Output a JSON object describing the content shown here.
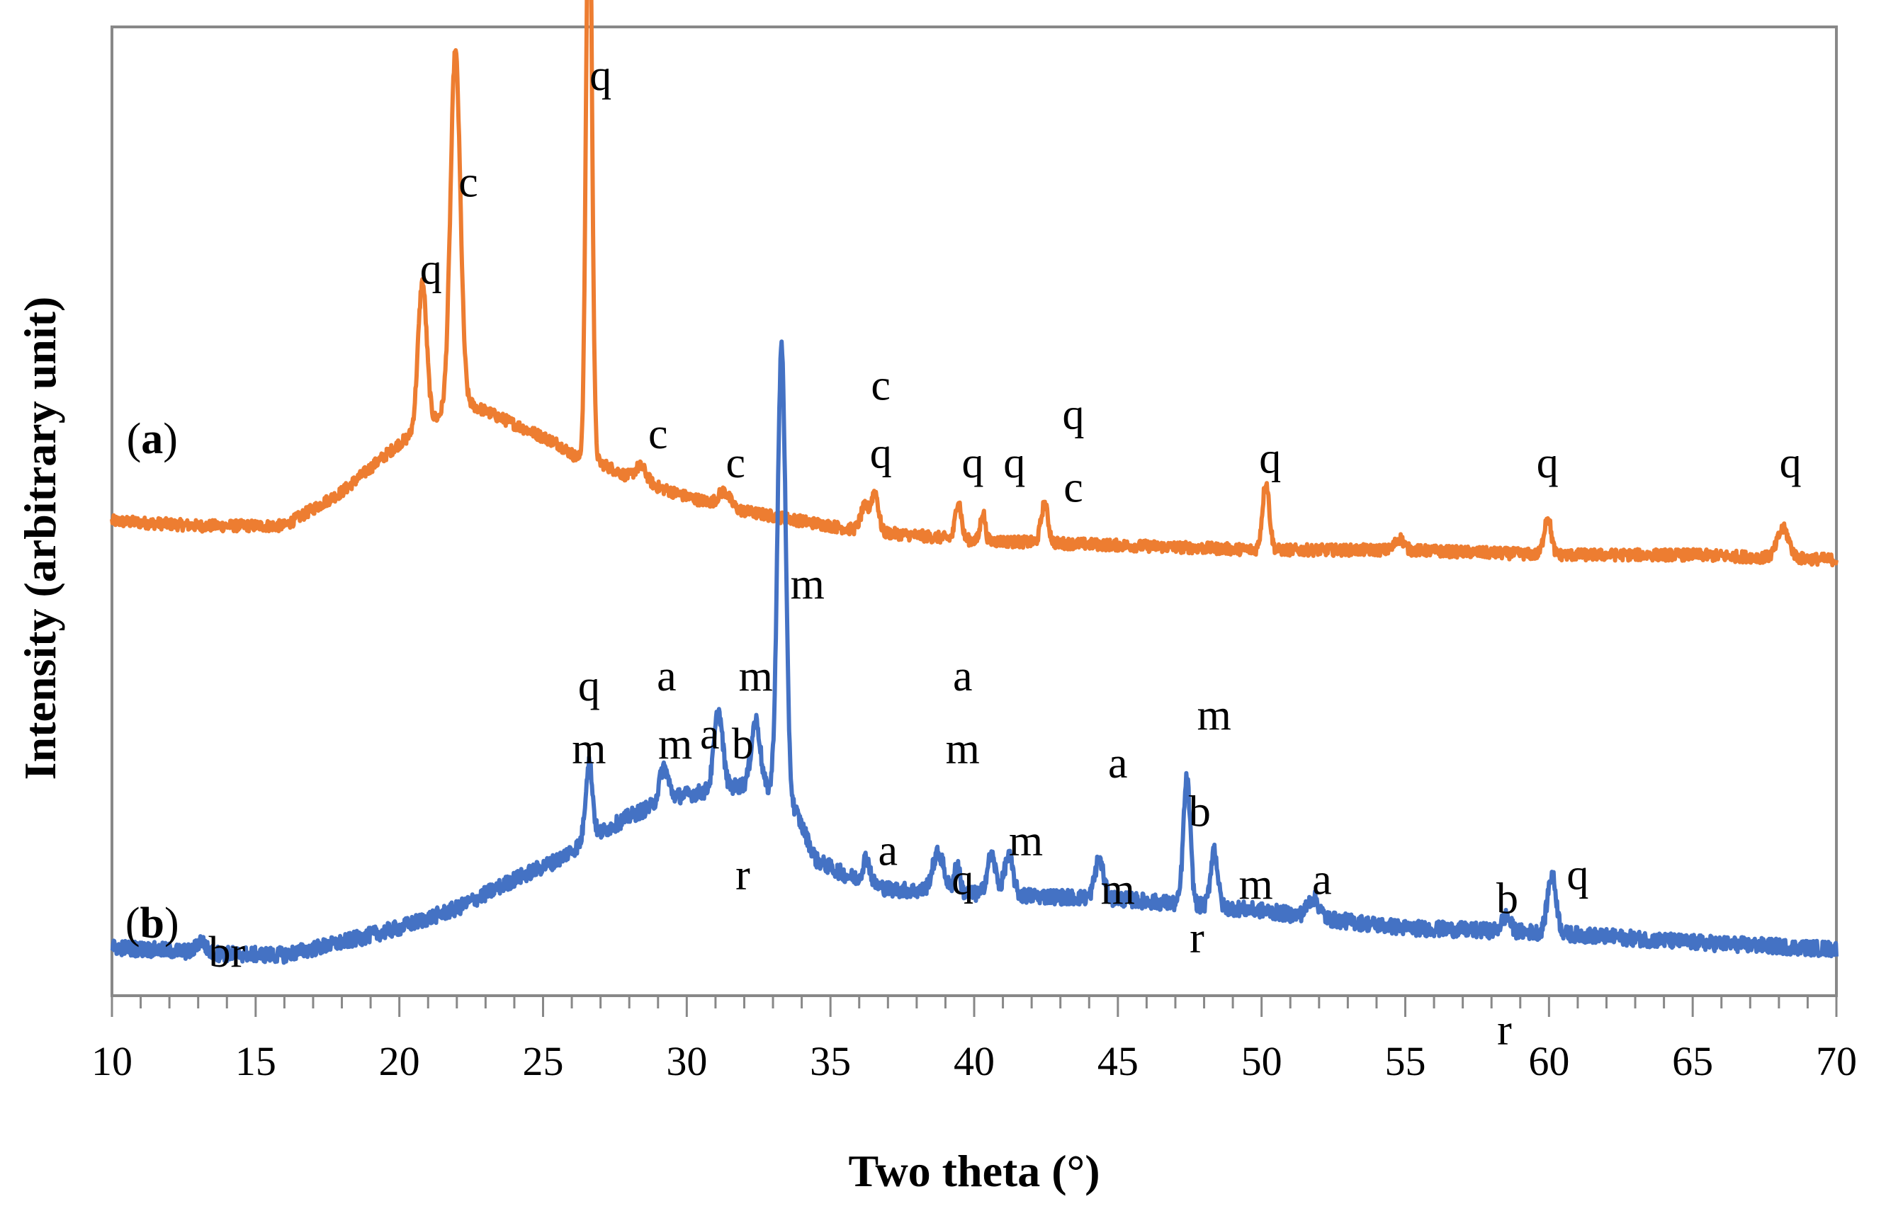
{
  "chart_data": {
    "type": "line",
    "title": "",
    "xlabel": "Two theta (°)",
    "ylabel": "Intensity (arbitrary unit)",
    "xlim": [
      10,
      70
    ],
    "ylim": [
      0,
      100
    ],
    "x_ticks": [
      10,
      15,
      20,
      25,
      30,
      35,
      40,
      45,
      50,
      55,
      60,
      65,
      70
    ],
    "x_tick_labels": [
      "10",
      "15",
      "20",
      "25",
      "30",
      "35",
      "40",
      "45",
      "50",
      "55",
      "60",
      "65",
      "70"
    ],
    "x_minor_step": 1,
    "grid": false,
    "legend": "none",
    "series": [
      {
        "name": "(a)",
        "sample_open": "(",
        "sample_letter": "a",
        "sample_close": ")",
        "label_at": [
          11.4,
          56
        ],
        "color": "#ED7D31",
        "baseline": [
          [
            10,
            49
          ],
          [
            13,
            48.5
          ],
          [
            16,
            48.5
          ],
          [
            18,
            52
          ],
          [
            20,
            57
          ],
          [
            21.5,
            60
          ],
          [
            22.5,
            61
          ],
          [
            24,
            59
          ],
          [
            25.5,
            57
          ],
          [
            26.2,
            55.5
          ],
          [
            27,
            55
          ],
          [
            28,
            53.5
          ],
          [
            30,
            51.5
          ],
          [
            32,
            50
          ],
          [
            34,
            49
          ],
          [
            36,
            48
          ],
          [
            40,
            47
          ],
          [
            45,
            46.5
          ],
          [
            50,
            46
          ],
          [
            55,
            46
          ],
          [
            60,
            45.5
          ],
          [
            65,
            45.5
          ],
          [
            70,
            45
          ]
        ],
        "peaks": [
          {
            "x": 20.8,
            "h": 15,
            "w": 0.15
          },
          {
            "x": 21.95,
            "h": 37,
            "w": 0.17
          },
          {
            "x": 26.6,
            "h": 64,
            "w": 0.1
          },
          {
            "x": 28.4,
            "h": 1.5,
            "w": 0.2
          },
          {
            "x": 31.3,
            "h": 1.5,
            "w": 0.2
          },
          {
            "x": 36.2,
            "h": 2.5,
            "w": 0.15
          },
          {
            "x": 36.55,
            "h": 4,
            "w": 0.12
          },
          {
            "x": 39.45,
            "h": 4,
            "w": 0.1
          },
          {
            "x": 40.3,
            "h": 3,
            "w": 0.08
          },
          {
            "x": 42.45,
            "h": 4,
            "w": 0.12
          },
          {
            "x": 50.15,
            "h": 7,
            "w": 0.12
          },
          {
            "x": 54.8,
            "h": 1.2,
            "w": 0.15
          },
          {
            "x": 59.95,
            "h": 4,
            "w": 0.12
          },
          {
            "x": 68.15,
            "h": 3,
            "w": 0.2
          }
        ],
        "noise_amp": 0.6
      },
      {
        "name": "(b)",
        "sample_open": "(",
        "sample_letter": "b",
        "sample_close": ")",
        "label_at": [
          11.4,
          6
        ],
        "color": "#4472C4",
        "baseline": [
          [
            10,
            5
          ],
          [
            14,
            4.3
          ],
          [
            16,
            4.2
          ],
          [
            18,
            5.5
          ],
          [
            20,
            7
          ],
          [
            22,
            9
          ],
          [
            24,
            12
          ],
          [
            25.5,
            14
          ],
          [
            26.5,
            16
          ],
          [
            28,
            18.5
          ],
          [
            29.5,
            20.5
          ],
          [
            30.5,
            21
          ],
          [
            31.5,
            21.5
          ],
          [
            32.5,
            22
          ],
          [
            33.8,
            19
          ],
          [
            34.5,
            14
          ],
          [
            35.5,
            12.5
          ],
          [
            37,
            11
          ],
          [
            40,
            10.5
          ],
          [
            45,
            10
          ],
          [
            47,
            9.5
          ],
          [
            50,
            8.8
          ],
          [
            52,
            8
          ],
          [
            55,
            7
          ],
          [
            60,
            6.5
          ],
          [
            65,
            5.5
          ],
          [
            70,
            4.8
          ]
        ],
        "peaks": [
          {
            "x": 13.1,
            "h": 1.2,
            "w": 0.15
          },
          {
            "x": 26.6,
            "h": 8,
            "w": 0.12
          },
          {
            "x": 29.2,
            "h": 3.5,
            "w": 0.15
          },
          {
            "x": 31.1,
            "h": 8,
            "w": 0.15
          },
          {
            "x": 32.4,
            "h": 6.5,
            "w": 0.15
          },
          {
            "x": 33.3,
            "h": 47,
            "w": 0.14
          },
          {
            "x": 36.25,
            "h": 2.5,
            "w": 0.12
          },
          {
            "x": 38.75,
            "h": 4,
            "w": 0.2
          },
          {
            "x": 39.4,
            "h": 3,
            "w": 0.1
          },
          {
            "x": 40.6,
            "h": 4,
            "w": 0.15
          },
          {
            "x": 41.2,
            "h": 4,
            "w": 0.15
          },
          {
            "x": 44.35,
            "h": 4,
            "w": 0.15
          },
          {
            "x": 47.4,
            "h": 13,
            "w": 0.12
          },
          {
            "x": 48.35,
            "h": 6,
            "w": 0.12
          },
          {
            "x": 51.8,
            "h": 2,
            "w": 0.2
          },
          {
            "x": 58.5,
            "h": 1.5,
            "w": 0.15
          },
          {
            "x": 60.1,
            "h": 6,
            "w": 0.15
          }
        ],
        "noise_amp": 0.8
      }
    ],
    "annotations": [
      {
        "text": "q",
        "x": 27.0,
        "y": 93.5,
        "series": "(a)"
      },
      {
        "text": "c",
        "x": 22.4,
        "y": 82.5,
        "series": "(a)"
      },
      {
        "text": "q",
        "x": 21.1,
        "y": 73.5,
        "series": "(a)"
      },
      {
        "text": "c",
        "x": 36.75,
        "y": 61.5,
        "series": "(a)"
      },
      {
        "text": "q",
        "x": 36.75,
        "y": 54.5,
        "series": "(a)"
      },
      {
        "text": "c",
        "x": 29.0,
        "y": 56.5,
        "series": "(a)"
      },
      {
        "text": "c",
        "x": 31.7,
        "y": 53.5,
        "series": "(a)"
      },
      {
        "text": "q",
        "x": 39.95,
        "y": 53.5,
        "series": "(a)"
      },
      {
        "text": "q",
        "x": 41.4,
        "y": 53.5,
        "series": "(a)"
      },
      {
        "text": "q",
        "x": 43.45,
        "y": 58.5,
        "series": "(a)"
      },
      {
        "text": "c",
        "x": 43.45,
        "y": 51.0,
        "series": "(a)"
      },
      {
        "text": "q",
        "x": 50.3,
        "y": 54.0,
        "series": "(a)"
      },
      {
        "text": "q",
        "x": 59.95,
        "y": 53.5,
        "series": "(a)"
      },
      {
        "text": "q",
        "x": 68.4,
        "y": 53.5,
        "series": "(a)"
      },
      {
        "text": "m",
        "x": 34.2,
        "y": 41.0,
        "series": "(b)"
      },
      {
        "text": "q",
        "x": 26.6,
        "y": 30.5,
        "series": "(b)"
      },
      {
        "text": "m",
        "x": 26.6,
        "y": 24.0,
        "series": "(b)"
      },
      {
        "text": "a",
        "x": 29.3,
        "y": 31.5,
        "series": "(b)"
      },
      {
        "text": "m",
        "x": 29.6,
        "y": 24.5,
        "series": "(b)"
      },
      {
        "text": "m",
        "x": 32.4,
        "y": 31.5,
        "series": "(b)"
      },
      {
        "text": "a",
        "x": 30.8,
        "y": 25.5,
        "series": "(b)"
      },
      {
        "text": "b",
        "x": 31.95,
        "y": 24.5,
        "series": "(b)"
      },
      {
        "text": "r",
        "x": 31.95,
        "y": 11.0,
        "series": "(b)"
      },
      {
        "text": "br",
        "x": 14.0,
        "y": 3.0,
        "series": "(b)"
      },
      {
        "text": "a",
        "x": 37.0,
        "y": 13.5,
        "series": "(b)"
      },
      {
        "text": "a",
        "x": 39.6,
        "y": 31.5,
        "series": "(b)"
      },
      {
        "text": "m",
        "x": 39.6,
        "y": 24.0,
        "series": "(b)"
      },
      {
        "text": "q",
        "x": 39.6,
        "y": 10.5,
        "series": "(b)"
      },
      {
        "text": "m",
        "x": 41.8,
        "y": 14.5,
        "series": "(b)"
      },
      {
        "text": "a",
        "x": 45.0,
        "y": 22.5,
        "series": "(b)"
      },
      {
        "text": "m",
        "x": 45.0,
        "y": 9.5,
        "series": "(b)"
      },
      {
        "text": "m",
        "x": 48.35,
        "y": 27.5,
        "series": "(b)"
      },
      {
        "text": "b",
        "x": 47.85,
        "y": 17.5,
        "series": "(b)"
      },
      {
        "text": "r",
        "x": 47.75,
        "y": 4.5,
        "series": "(b)"
      },
      {
        "text": "m",
        "x": 49.8,
        "y": 10.0,
        "series": "(b)"
      },
      {
        "text": "a",
        "x": 52.1,
        "y": 10.5,
        "series": "(b)"
      },
      {
        "text": "b",
        "x": 58.55,
        "y": 8.5,
        "series": "(b)"
      },
      {
        "text": "r",
        "x": 58.45,
        "y": -5.0,
        "series": "(b)"
      },
      {
        "text": "q",
        "x": 61.0,
        "y": 11.0,
        "series": "(b)"
      }
    ]
  }
}
